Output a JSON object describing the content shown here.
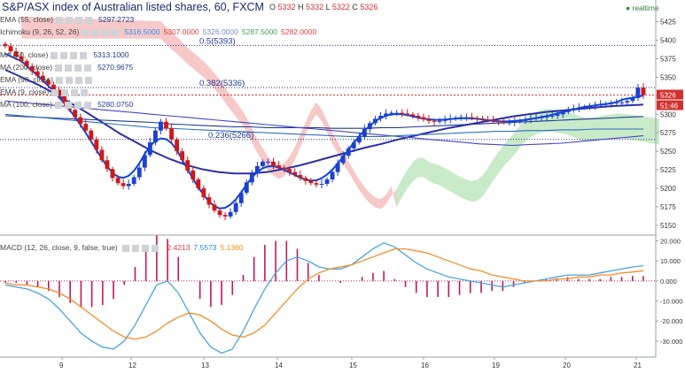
{
  "header": {
    "title": "S&P/ASX index of Australian listed shares, 60, FXCM",
    "ohlc": {
      "o_label": "O",
      "o": "5332",
      "h_label": "H",
      "h": "5332",
      "l_label": "L",
      "l": "5322",
      "c_label": "C",
      "c": "5326"
    },
    "realtime": "realtime"
  },
  "indicators": [
    {
      "label": "EMA (55, close)",
      "values": [
        "5297.2723"
      ],
      "color": "#1f3a93"
    },
    {
      "label": "Ichimoku (9, 26, 52, 26)",
      "values": [
        "5316.5000",
        "5307.0000",
        "5326.0000",
        "5287.5000",
        "5282.0000"
      ],
      "colors": [
        "#2196f3",
        "#e53935",
        "#7986cb",
        "#43a047",
        "#e53935"
      ]
    },
    {
      "label": "MA (50, close)",
      "values": [
        "5313.1000"
      ],
      "color": "#1f3a93"
    },
    {
      "label": "MA (200, close)",
      "values": [
        "5270.9675"
      ],
      "color": "#1f3a93"
    },
    {
      "label": "EMA (90, close)",
      "values": [],
      "color": "#1f3a93"
    },
    {
      "label": "EMA (9, close)",
      "values": [],
      "color": "#1f3a93"
    },
    {
      "label": "MA (100, close)",
      "values": [
        "5280.0750"
      ],
      "color": "#1f3a93"
    }
  ],
  "fib_levels": [
    {
      "label": "0.5(5393)",
      "value": 5393
    },
    {
      "label": "0.382(5336)",
      "value": 5336
    },
    {
      "label": "0.236(5266)",
      "value": 5266
    }
  ],
  "price_badges": {
    "last": "5326",
    "countdown": "51:46"
  },
  "macd": {
    "label": "MACD (12, 26, close, 9, false, true)",
    "values": [
      "2.4213",
      "7.5573",
      "5.1360"
    ],
    "colors": [
      "#e53935",
      "#1e88e5",
      "#fb8c00"
    ]
  },
  "colors": {
    "up": "#1e3fd0",
    "down": "#d01818",
    "cloud_bear": "#f4b6b6",
    "cloud_bull": "#b7e3b7",
    "ma_line": "#3b3fbf",
    "lead_line": "#0b45d8",
    "macd_line": "#4aa3df",
    "signal_line": "#f28c28",
    "hist": "#c2185b"
  },
  "chart_data": [
    {
      "type": "candlestick",
      "title": "S&P/ASX index of Australian listed shares, 60, FXCM",
      "xlabel": "",
      "ylabel": "",
      "x_tick_labels": [
        "9",
        "12",
        "13",
        "14",
        "15",
        "16",
        "19",
        "20",
        "21"
      ],
      "y_tick_labels": [
        "5425",
        "5400",
        "5375",
        "5350",
        "5325",
        "5300",
        "5275",
        "5250",
        "5225",
        "5200",
        "5175",
        "5150"
      ],
      "ylim": [
        5138,
        5440
      ],
      "grid": false,
      "close": [
        5392,
        5385,
        5378,
        5372,
        5365,
        5358,
        5352,
        5346,
        5340,
        5333,
        5325,
        5316,
        5306,
        5296,
        5287,
        5278,
        5266,
        5252,
        5238,
        5226,
        5214,
        5207,
        5203,
        5206,
        5215,
        5228,
        5245,
        5262,
        5278,
        5290,
        5281,
        5266,
        5250,
        5238,
        5224,
        5212,
        5200,
        5188,
        5178,
        5170,
        5164,
        5162,
        5168,
        5180,
        5194,
        5208,
        5220,
        5230,
        5236,
        5236,
        5231,
        5228,
        5226,
        5222,
        5218,
        5214,
        5210,
        5207,
        5205,
        5206,
        5212,
        5222,
        5234,
        5244,
        5254,
        5262,
        5270,
        5280,
        5288,
        5294,
        5298,
        5301,
        5302,
        5302,
        5301,
        5300,
        5298,
        5296,
        5293,
        5291,
        5290,
        5291,
        5293,
        5294,
        5295,
        5296,
        5296,
        5295,
        5294,
        5293,
        5292,
        5291,
        5290,
        5289,
        5289,
        5290,
        5291,
        5293,
        5294,
        5295,
        5296,
        5297,
        5298,
        5300,
        5303,
        5306,
        5308,
        5309,
        5310,
        5311,
        5312,
        5313,
        5314,
        5315,
        5316,
        5316,
        5318,
        5322,
        5336,
        5326
      ],
      "series": [
        {
          "name": "EMA (55, close)",
          "values": [
            5298,
            5297,
            5296,
            5295,
            5294,
            5293,
            5292,
            5291,
            5290,
            5289,
            5287,
            5286,
            5285,
            5284,
            5283,
            5283,
            5282,
            5282,
            5282,
            5282,
            5281,
            5281,
            5281,
            5282,
            5282,
            5283,
            5284,
            5285,
            5286,
            5287,
            5288,
            5289,
            5290,
            5291,
            5292,
            5293,
            5294,
            5295,
            5296,
            5297
          ]
        },
        {
          "name": "MA (50, close)",
          "values": [
            5360,
            5350,
            5340,
            5328,
            5315,
            5302,
            5288,
            5274,
            5262,
            5250,
            5240,
            5232,
            5226,
            5222,
            5220,
            5220,
            5222,
            5226,
            5231,
            5237,
            5243,
            5249,
            5255,
            5260,
            5266,
            5271,
            5276,
            5281,
            5285,
            5289,
            5293,
            5297,
            5300,
            5303,
            5305,
            5307,
            5309,
            5311,
            5312,
            5313
          ]
        },
        {
          "name": "MA (200, close)",
          "values": [
            5318,
            5316,
            5314,
            5312,
            5310,
            5308,
            5306,
            5304,
            5302,
            5300,
            5298,
            5296,
            5294,
            5292,
            5290,
            5288,
            5286,
            5284,
            5282,
            5280,
            5278,
            5276,
            5274,
            5272,
            5270,
            5268,
            5266,
            5264,
            5262,
            5260,
            5259,
            5258,
            5259,
            5260,
            5261,
            5263,
            5265,
            5267,
            5269,
            5271
          ]
        },
        {
          "name": "MA (100, close)",
          "values": [
            5300,
            5298,
            5296,
            5294,
            5292,
            5290,
            5288,
            5286,
            5284,
            5282,
            5281,
            5280,
            5279,
            5278,
            5277,
            5276,
            5275,
            5274,
            5273,
            5272,
            5271,
            5270,
            5270,
            5270,
            5271,
            5272,
            5273,
            5274,
            5275,
            5276,
            5277,
            5277,
            5278,
            5278,
            5279,
            5279,
            5280,
            5280,
            5280,
            5280
          ]
        }
      ],
      "fib_retracement": [
        5393,
        5336,
        5266
      ]
    },
    {
      "type": "line",
      "title": "MACD (12, 26, close, 9, false, true)",
      "x_tick_labels": [
        "9",
        "12",
        "13",
        "14",
        "15",
        "16",
        "19",
        "20",
        "21"
      ],
      "y_tick_labels": [
        "20.000",
        "10.000",
        "0.000",
        "-10.000",
        "-20.000",
        "-30.000"
      ],
      "ylim": [
        -38,
        22
      ],
      "series": [
        {
          "name": "MACD",
          "values": [
            -2,
            -3,
            -4,
            -6,
            -9,
            -14,
            -20,
            -26,
            -30,
            -33,
            -34,
            -30,
            -22,
            -12,
            -2,
            0,
            -6,
            -16,
            -26,
            -33,
            -36,
            -34,
            -25,
            -14,
            -4,
            4,
            10,
            12,
            10,
            7,
            6,
            6,
            8,
            12,
            16,
            19,
            17,
            13,
            9,
            6,
            4,
            2,
            1,
            0,
            -1,
            -2,
            -3,
            -2,
            -1,
            0,
            1,
            2,
            3,
            3,
            3,
            4,
            5,
            6,
            7,
            7.6
          ]
        },
        {
          "name": "Signal",
          "values": [
            -1,
            -2,
            -2,
            -3,
            -4,
            -6,
            -9,
            -13,
            -17,
            -21,
            -25,
            -28,
            -29,
            -28,
            -25,
            -21,
            -18,
            -16,
            -17,
            -20,
            -24,
            -27,
            -28,
            -26,
            -22,
            -16,
            -10,
            -4,
            1,
            4,
            6,
            7,
            8,
            10,
            12,
            14,
            16,
            16,
            15,
            14,
            12,
            10,
            8,
            6,
            5,
            3,
            2,
            1,
            0,
            0,
            0,
            1,
            1,
            2,
            2,
            3,
            3,
            4,
            4.5,
            5.1
          ]
        },
        {
          "name": "Histogram",
          "values": [
            -1,
            -1,
            -2,
            -3,
            -5,
            -8,
            -11,
            -13,
            -13,
            -12,
            -9,
            -2,
            7,
            16,
            23,
            21,
            12,
            0,
            -9,
            -13,
            -12,
            -7,
            3,
            12,
            18,
            20,
            20,
            16,
            9,
            3,
            0,
            -1,
            0,
            2,
            4,
            5,
            1,
            -3,
            -6,
            -8,
            -8,
            -8,
            -7,
            -6,
            -6,
            -5,
            -5,
            -3,
            -1,
            0,
            1,
            1,
            2,
            1,
            1,
            1,
            2,
            2,
            2.5,
            2.4
          ]
        }
      ],
      "zero_line": true
    }
  ]
}
